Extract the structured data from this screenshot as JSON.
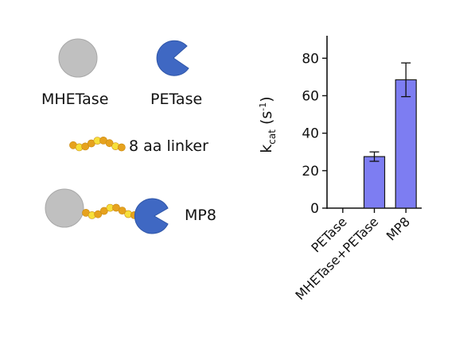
{
  "legend": {
    "mhetase_label": "MHETase",
    "petase_label": "PETase",
    "linker_label": "8 aa linker",
    "mp8_label": "MP8"
  },
  "colors": {
    "mhetase": "#c0c0c0",
    "petase": "#3f68c3",
    "linker_dark": "#e6a21e",
    "linker_light": "#f7df3a",
    "bar_fill": "#7d7df2",
    "bar_stroke": "#1a1a1a"
  },
  "chart_data": {
    "type": "bar",
    "categories": [
      "PETase",
      "MHETase+PETase",
      "MP8"
    ],
    "values": [
      0,
      27.5,
      68.5
    ],
    "errors": [
      0,
      2.5,
      9
    ],
    "ylabel_main": "k",
    "ylabel_sub": "cat",
    "ylabel_unit": " (s",
    "ylabel_exp": "-1",
    "ylabel_close": ")",
    "ylim": [
      0,
      92
    ],
    "yticks": [
      0,
      20,
      40,
      60,
      80
    ],
    "grid": false
  }
}
